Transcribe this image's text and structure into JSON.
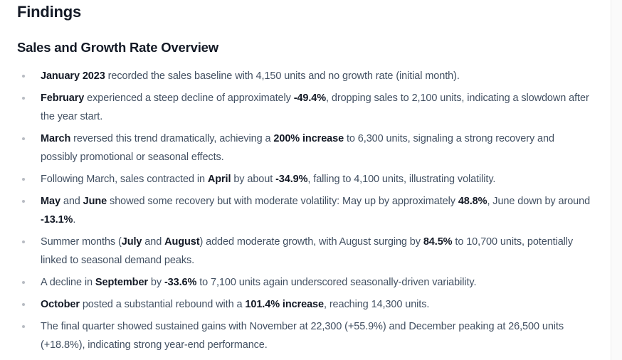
{
  "page": {
    "title": "Findings",
    "section_title": "Sales and Growth Rate Overview"
  },
  "theme": {
    "heading_color": "#141a26",
    "body_color": "#425062",
    "bullet_color": "#b8bcc3",
    "page_background": "#ffffff",
    "scrollbar_track_color": "#fafafa"
  },
  "findings": [
    {
      "segments": [
        {
          "text": "January 2023",
          "bold": true
        },
        {
          "text": " recorded the sales baseline with 4,150 units and no growth rate (initial month).",
          "bold": false
        }
      ]
    },
    {
      "segments": [
        {
          "text": "February",
          "bold": true
        },
        {
          "text": " experienced a steep decline of approximately ",
          "bold": false
        },
        {
          "text": "-49.4%",
          "bold": true
        },
        {
          "text": ", dropping sales to 2,100 units, indicating a slowdown after the year start.",
          "bold": false
        }
      ]
    },
    {
      "segments": [
        {
          "text": "March",
          "bold": true
        },
        {
          "text": " reversed this trend dramatically, achieving a ",
          "bold": false
        },
        {
          "text": "200% increase",
          "bold": true
        },
        {
          "text": " to 6,300 units, signaling a strong recovery and possibly promotional or seasonal effects.",
          "bold": false
        }
      ]
    },
    {
      "segments": [
        {
          "text": "Following March, sales contracted in ",
          "bold": false
        },
        {
          "text": "April",
          "bold": true
        },
        {
          "text": " by about ",
          "bold": false
        },
        {
          "text": "-34.9%",
          "bold": true
        },
        {
          "text": ", falling to 4,100 units, illustrating volatility.",
          "bold": false
        }
      ]
    },
    {
      "segments": [
        {
          "text": "May",
          "bold": true
        },
        {
          "text": " and ",
          "bold": false
        },
        {
          "text": "June",
          "bold": true
        },
        {
          "text": " showed some recovery but with moderate volatility: May up by approximately ",
          "bold": false
        },
        {
          "text": "48.8%",
          "bold": true
        },
        {
          "text": ", June down by around ",
          "bold": false
        },
        {
          "text": "-13.1%",
          "bold": true
        },
        {
          "text": ".",
          "bold": false
        }
      ]
    },
    {
      "segments": [
        {
          "text": "Summer months (",
          "bold": false
        },
        {
          "text": "July",
          "bold": true
        },
        {
          "text": " and ",
          "bold": false
        },
        {
          "text": "August",
          "bold": true
        },
        {
          "text": ") added moderate growth, with August surging by ",
          "bold": false
        },
        {
          "text": "84.5%",
          "bold": true
        },
        {
          "text": " to 10,700 units, potentially linked to seasonal demand peaks.",
          "bold": false
        }
      ]
    },
    {
      "segments": [
        {
          "text": "A decline in ",
          "bold": false
        },
        {
          "text": "September",
          "bold": true
        },
        {
          "text": " by ",
          "bold": false
        },
        {
          "text": "-33.6%",
          "bold": true
        },
        {
          "text": " to 7,100 units again underscored seasonally-driven variability.",
          "bold": false
        }
      ]
    },
    {
      "segments": [
        {
          "text": "October",
          "bold": true
        },
        {
          "text": " posted a substantial rebound with a ",
          "bold": false
        },
        {
          "text": "101.4% increase",
          "bold": true
        },
        {
          "text": ", reaching 14,300 units.",
          "bold": false
        }
      ]
    },
    {
      "segments": [
        {
          "text": "The final quarter showed sustained gains with November at 22,300 (+55.9%) and December peaking at 26,500 units (+18.8%), indicating strong year-end performance.",
          "bold": false
        }
      ]
    }
  ]
}
